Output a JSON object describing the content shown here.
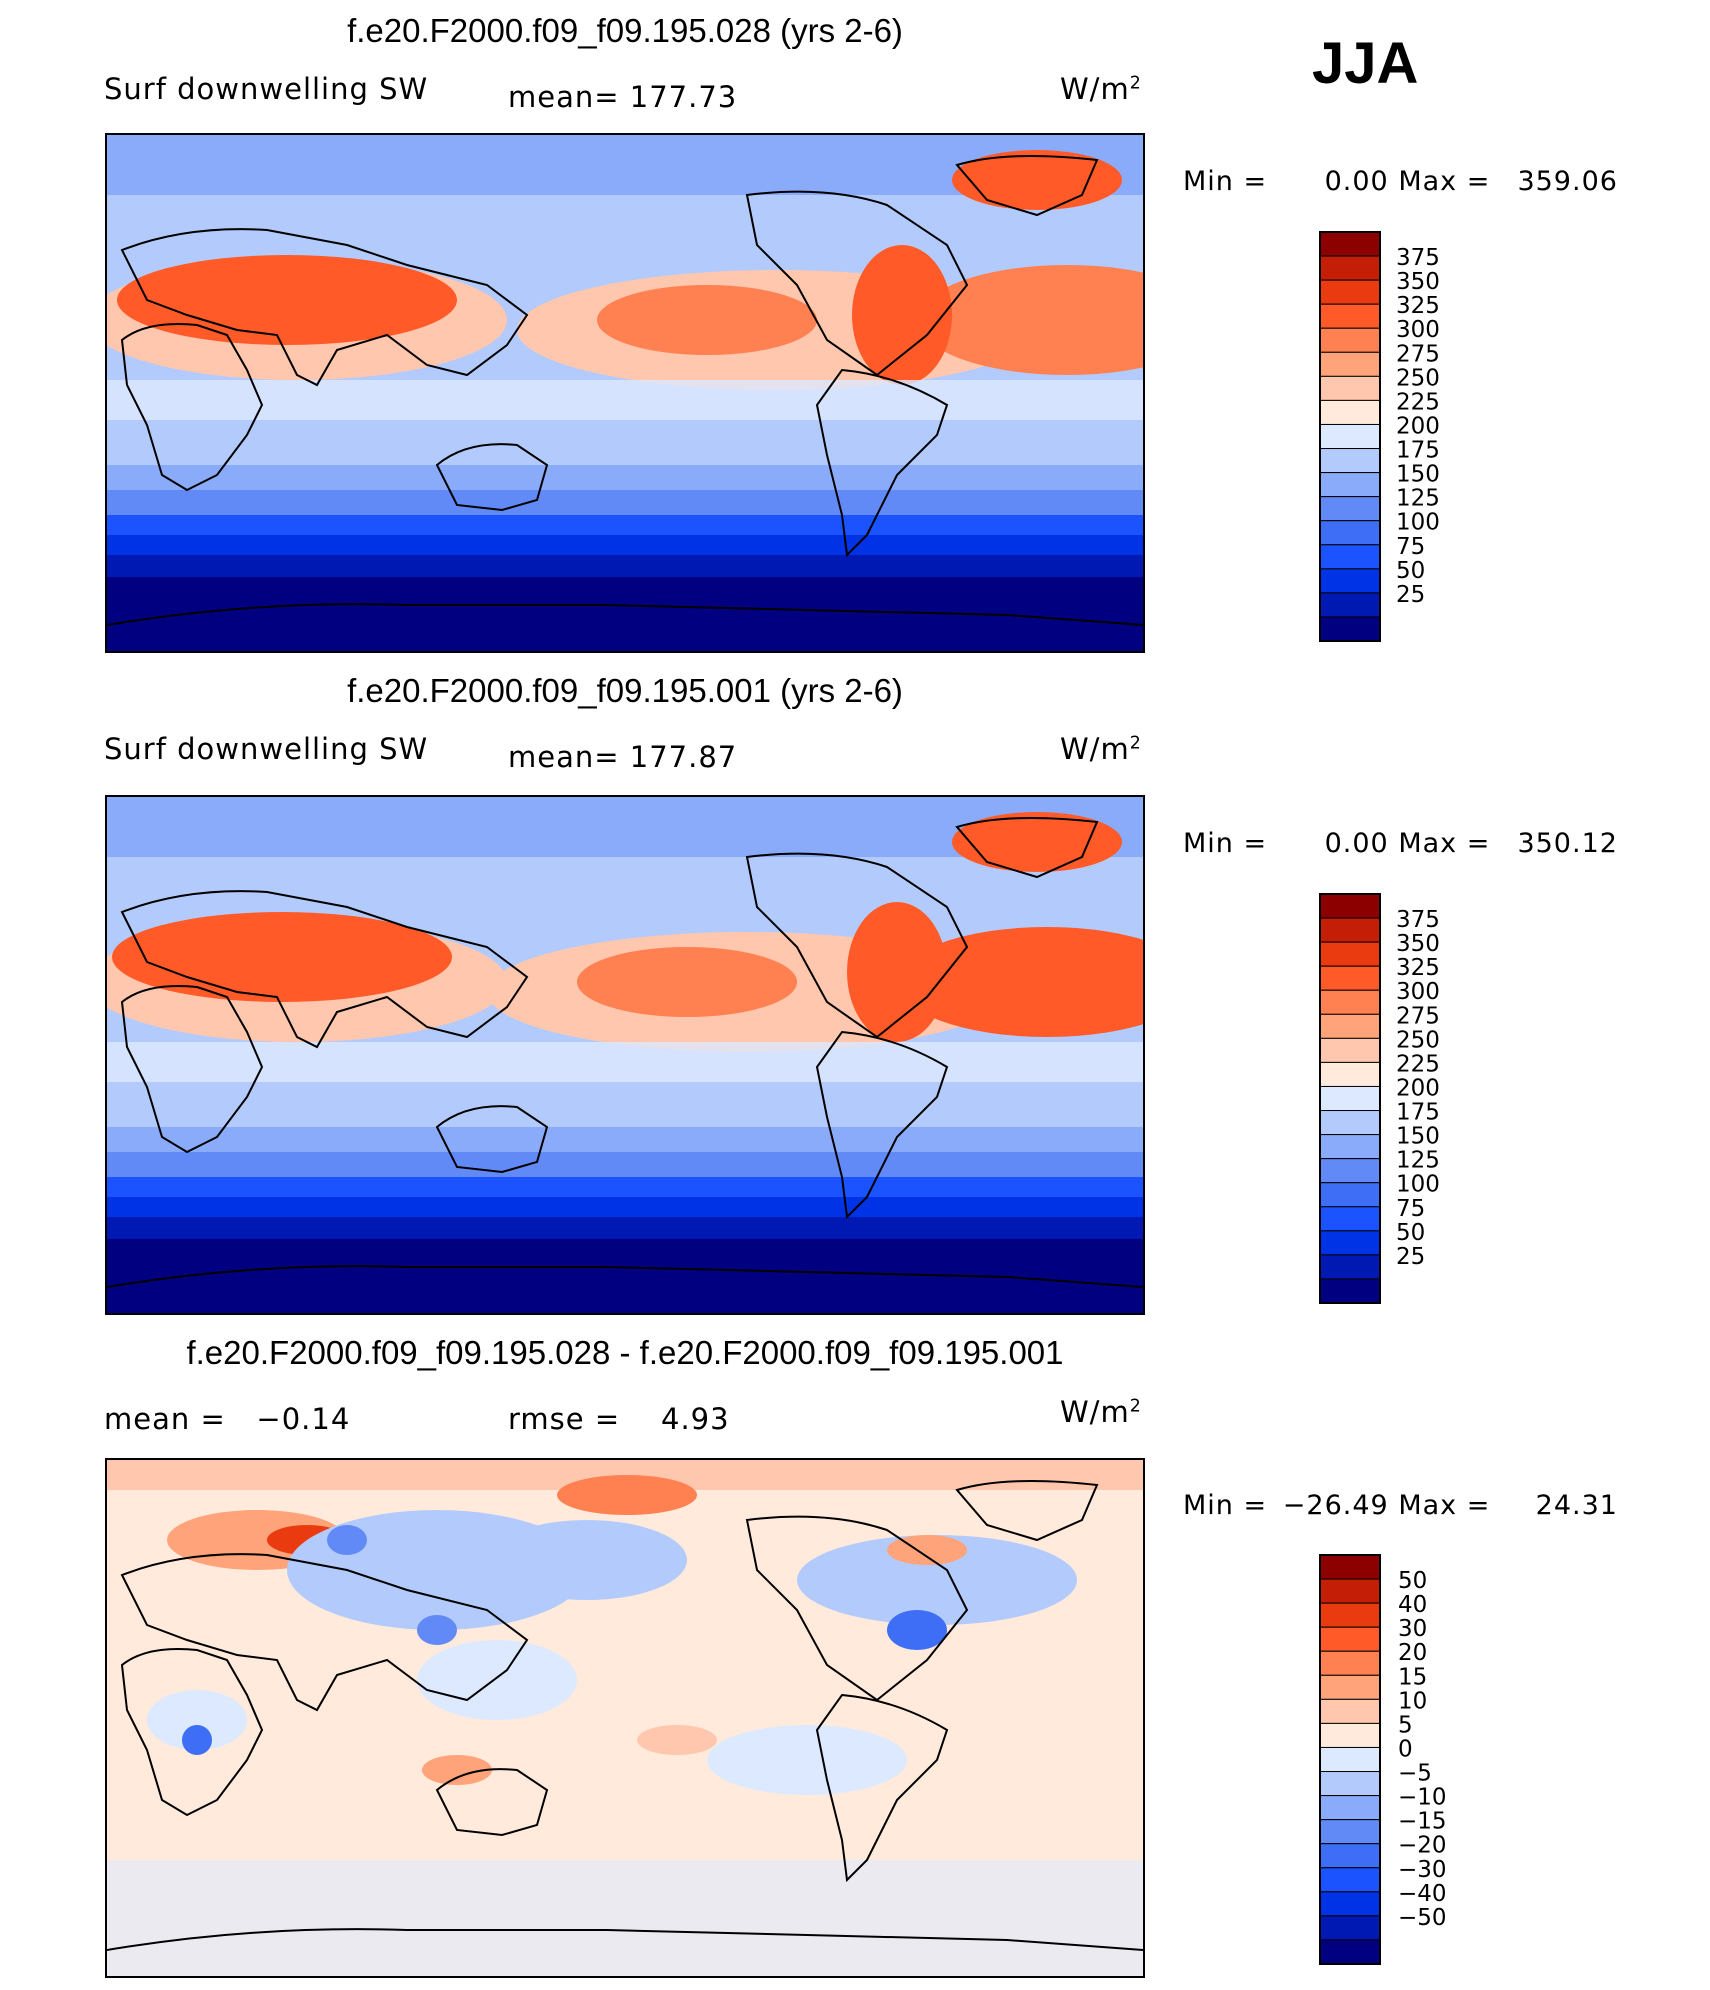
{
  "season": "JJA",
  "colors": {
    "full": [
      "#000080",
      "#0019b2",
      "#0033e6",
      "#1a53ff",
      "#3d6ef5",
      "#628af7",
      "#8aabf9",
      "#b3cbfc",
      "#dde9ff",
      "#ffeadb",
      "#ffc7ad",
      "#ffa37a",
      "#ff8050",
      "#ff5a28",
      "#ea3a10",
      "#c41e06",
      "#8c0000"
    ],
    "diff": [
      "#000080",
      "#0019b2",
      "#0033e6",
      "#1a53ff",
      "#3d6ef5",
      "#628af7",
      "#8aabf9",
      "#b3cbfc",
      "#dde9ff",
      "#ffeadb",
      "#ffc7ad",
      "#ffa37a",
      "#ff8050",
      "#ff5a28",
      "#ea3a10",
      "#c41e06",
      "#8c0000"
    ]
  },
  "chart_data": [
    {
      "type": "heatmap",
      "title": "f.e20.F2000.f09_f09.195.028 (yrs 2-6)",
      "variable": "Surf downwelling SW",
      "mean_label": "mean=",
      "mean": "177.73",
      "units_base": "W/m",
      "units_exp": "2",
      "min_label": "Min =",
      "min": "0.00",
      "max_label": "Max =",
      "max": "359.06",
      "levels": [
        "375",
        "350",
        "325",
        "300",
        "275",
        "250",
        "225",
        "200",
        "175",
        "150",
        "125",
        "100",
        "75",
        "50",
        "25"
      ]
    },
    {
      "type": "heatmap",
      "title": "f.e20.F2000.f09_f09.195.001 (yrs 2-6)",
      "variable": "Surf downwelling SW",
      "mean_label": "mean=",
      "mean": "177.87",
      "units_base": "W/m",
      "units_exp": "2",
      "min_label": "Min =",
      "min": "0.00",
      "max_label": "Max =",
      "max": "350.12",
      "levels": [
        "375",
        "350",
        "325",
        "300",
        "275",
        "250",
        "225",
        "200",
        "175",
        "150",
        "125",
        "100",
        "75",
        "50",
        "25"
      ]
    },
    {
      "type": "heatmap",
      "title": "f.e20.F2000.f09_f09.195.028 - f.e20.F2000.f09_f09.195.001",
      "mean_label": "mean =",
      "mean": "−0.14",
      "rmse_label": "rmse =",
      "rmse": "4.93",
      "units_base": "W/m",
      "units_exp": "2",
      "min_label": "Min =",
      "min": "−26.49",
      "max_label": "Max =",
      "max": "24.31",
      "levels": [
        "50",
        "40",
        "30",
        "20",
        "15",
        "10",
        "5",
        "0",
        "−5",
        "−10",
        "−15",
        "−20",
        "−30",
        "−40",
        "−50"
      ]
    }
  ]
}
